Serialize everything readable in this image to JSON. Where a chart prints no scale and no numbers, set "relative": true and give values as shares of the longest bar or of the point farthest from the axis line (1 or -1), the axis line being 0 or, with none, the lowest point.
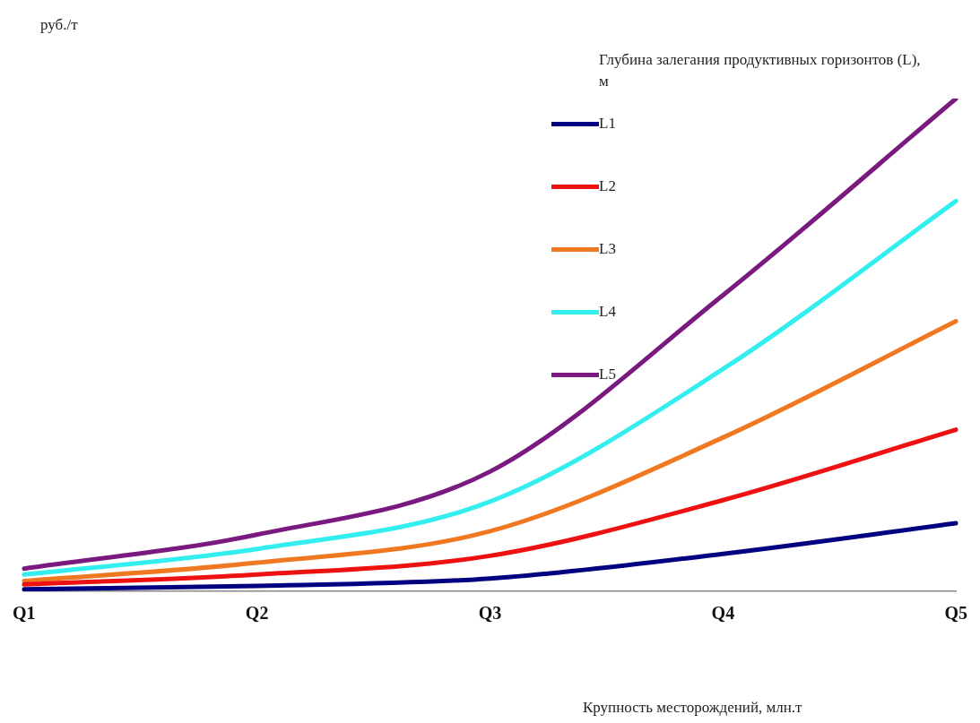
{
  "chart_data": {
    "type": "line",
    "relative": true,
    "xlabel": "Крупность месторождений, млн.т",
    "ylabel": "руб./т",
    "legend_title": "Глубина залегания продуктивных горизонтов  (L), м",
    "legend": "top right",
    "marker": "none",
    "grid": false,
    "categories": [
      "Q1",
      "Q2",
      "Q3",
      "Q4",
      "Q5"
    ],
    "series": [
      {
        "name": "L1",
        "color": "#000080",
        "values": [
          0.004,
          0.011,
          0.026,
          0.076,
          0.138
        ]
      },
      {
        "name": "L2",
        "color": "#ee1111",
        "values": [
          0.014,
          0.034,
          0.072,
          0.185,
          0.328
        ]
      },
      {
        "name": "L3",
        "color": "#f07820",
        "values": [
          0.021,
          0.058,
          0.122,
          0.312,
          0.548
        ]
      },
      {
        "name": "L4",
        "color": "#33eeee",
        "values": [
          0.034,
          0.086,
          0.182,
          0.451,
          0.792
        ]
      },
      {
        "name": "L5",
        "color": "#7a1a80",
        "values": [
          0.046,
          0.115,
          0.243,
          0.601,
          1
        ]
      }
    ]
  }
}
